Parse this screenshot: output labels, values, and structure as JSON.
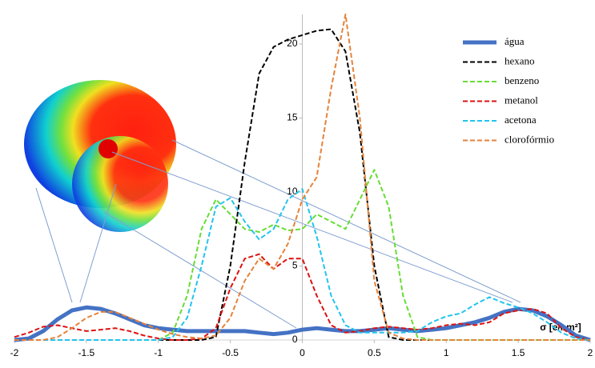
{
  "chart_data": {
    "type": "line",
    "x": [
      -2,
      -1.9,
      -1.8,
      -1.7,
      -1.6,
      -1.5,
      -1.4,
      -1.3,
      -1.2,
      -1.1,
      -1,
      -0.9,
      -0.8,
      -0.7,
      -0.6,
      -0.5,
      -0.4,
      -0.3,
      -0.2,
      -0.1,
      0,
      0.1,
      0.2,
      0.3,
      0.4,
      0.5,
      0.6,
      0.7,
      0.8,
      0.9,
      1,
      1.1,
      1.2,
      1.3,
      1.4,
      1.5,
      1.6,
      1.7,
      1.8,
      1.9,
      2
    ],
    "x_label": "σ [e/nm²]",
    "xlim": [
      -2,
      2
    ],
    "xticks": [
      -2,
      -1.5,
      -1,
      -0.5,
      0,
      0.5,
      1,
      1.5,
      2
    ],
    "ylim": [
      0,
      22
    ],
    "yticks": [
      0,
      5,
      10,
      15,
      20
    ],
    "legend": "right",
    "series": [
      {
        "name": "água",
        "color": "#4472c4",
        "width": 5,
        "dashed": false,
        "values": [
          0,
          0.1,
          0.6,
          1.4,
          2.0,
          2.2,
          2.1,
          1.8,
          1.4,
          1.0,
          0.8,
          0.7,
          0.6,
          0.6,
          0.6,
          0.6,
          0.6,
          0.5,
          0.4,
          0.5,
          0.7,
          0.8,
          0.7,
          0.6,
          0.6,
          0.7,
          0.8,
          0.7,
          0.6,
          0.7,
          0.8,
          1.0,
          1.2,
          1.5,
          1.9,
          2.1,
          2.0,
          1.6,
          1.0,
          0.3,
          0
        ]
      },
      {
        "name": "hexano",
        "color": "#000000",
        "width": 2,
        "dashed": true,
        "values": [
          0,
          0,
          0,
          0,
          0,
          0,
          0,
          0,
          0,
          0,
          0,
          0,
          0,
          0,
          0.2,
          5,
          12,
          18,
          19.8,
          20.3,
          20.6,
          20.9,
          21.0,
          19.5,
          14,
          5,
          0.2,
          0,
          0,
          0,
          0,
          0,
          0,
          0,
          0,
          0,
          0,
          0,
          0,
          0,
          0
        ]
      },
      {
        "name": "benzeno",
        "color": "#66dd33",
        "width": 2,
        "dashed": true,
        "values": [
          0,
          0,
          0,
          0,
          0,
          0,
          0,
          0,
          0,
          0,
          0,
          0.5,
          3,
          7.5,
          9.5,
          8.5,
          7.5,
          7.3,
          7.8,
          7.4,
          7.5,
          8.5,
          8,
          7.5,
          9.5,
          11.5,
          9,
          3,
          0.2,
          0,
          0,
          0,
          0,
          0,
          0,
          0,
          0,
          0,
          0,
          0,
          0
        ]
      },
      {
        "name": "metanol",
        "color": "#dd1111",
        "width": 2,
        "dashed": true,
        "values": [
          0.2,
          0.5,
          0.9,
          1.0,
          0.8,
          0.6,
          0.7,
          0.8,
          0.6,
          0.3,
          0.1,
          0,
          0,
          0.1,
          0.8,
          3.5,
          5.5,
          5.8,
          4.8,
          5.5,
          5.5,
          3,
          1,
          0.5,
          0.6,
          0.8,
          0.9,
          0.8,
          0.7,
          0.8,
          1.0,
          1.1,
          1.0,
          1.2,
          1.8,
          2.0,
          2.1,
          1.8,
          0.8,
          0.2,
          0
        ]
      },
      {
        "name": "acetona",
        "color": "#22c4ee",
        "width": 2,
        "dashed": true,
        "values": [
          0,
          0,
          0,
          0,
          0,
          0,
          0,
          0,
          0,
          0,
          0,
          0.2,
          1.5,
          5,
          9,
          9.6,
          8,
          6.8,
          7.5,
          9.5,
          10.2,
          7,
          3,
          1,
          0.5,
          0.5,
          0.5,
          0.5,
          0.6,
          1.2,
          1.6,
          1.8,
          2.4,
          2.9,
          2.5,
          2.2,
          1.8,
          1.2,
          0.5,
          0.1,
          0
        ]
      },
      {
        "name": "clorofórmio",
        "color": "#e6823a",
        "width": 2,
        "dashed": true,
        "values": [
          0,
          0,
          0,
          0.2,
          0.8,
          1.5,
          1.9,
          1.9,
          1.5,
          1.1,
          0.7,
          0.4,
          0.2,
          0.1,
          0.3,
          1.5,
          4,
          5.5,
          4.8,
          6.5,
          9.5,
          11,
          17,
          22,
          15,
          4,
          0.5,
          0.1,
          0,
          0,
          0,
          0,
          0,
          0,
          0,
          0,
          0,
          0,
          0,
          0,
          0
        ]
      }
    ]
  }
}
